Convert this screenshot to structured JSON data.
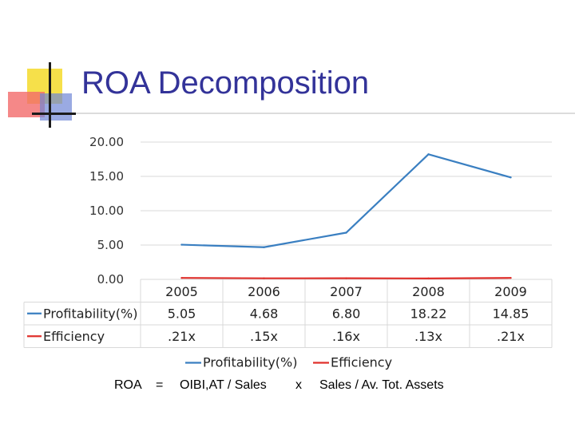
{
  "slide": {
    "title": "ROA Decomposition",
    "formula": {
      "lhs": "ROA",
      "equals": "=",
      "term1": "OIBI,AT / Sales",
      "times": "x",
      "term2": "Sales / Av. Tot. Assets"
    }
  },
  "colors": {
    "title": "#333399",
    "profitability": "#3a7fc1",
    "efficiency": "#e0302c",
    "grid": "#d9d9d9"
  },
  "chart_data": {
    "type": "line",
    "categories": [
      "2005",
      "2006",
      "2007",
      "2008",
      "2009"
    ],
    "ylim": [
      0,
      20
    ],
    "yticks": [
      "0.00",
      "5.00",
      "10.00",
      "15.00",
      "20.00"
    ],
    "grid": true,
    "legend_placement": "bottom",
    "series": [
      {
        "name": "Profitability(%)",
        "values": [
          5.05,
          4.68,
          6.8,
          18.22,
          14.85
        ],
        "labels": [
          "5.05",
          "4.68",
          "6.80",
          "18.22",
          "14.85"
        ]
      },
      {
        "name": "Efficiency",
        "values": [
          0.21,
          0.15,
          0.16,
          0.13,
          0.21
        ],
        "labels": [
          ".21x",
          ".15x",
          ".16x",
          ".13x",
          ".21x"
        ]
      }
    ]
  }
}
